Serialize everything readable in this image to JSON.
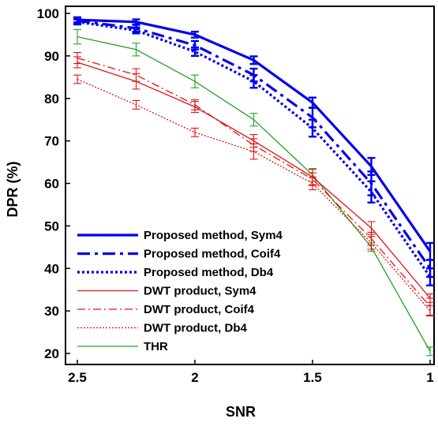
{
  "chart_data": {
    "type": "line",
    "title": "",
    "xlabel": "SNR",
    "ylabel": "DPR (%)",
    "x": [
      2.5,
      2.25,
      2,
      1.75,
      1.5,
      1.25,
      1
    ],
    "x_tick_labels": [
      "2.5",
      "2",
      "1.5",
      "1"
    ],
    "x_ticks": [
      2.5,
      2,
      1.5,
      1
    ],
    "y_tick_labels": [
      "20",
      "30",
      "40",
      "50",
      "60",
      "70",
      "80",
      "90",
      "100"
    ],
    "y_ticks": [
      20,
      30,
      40,
      50,
      60,
      70,
      80,
      90,
      100
    ],
    "xlim": [
      2.5,
      1
    ],
    "ylim": [
      20,
      100
    ],
    "x_reversed": true,
    "grid": false,
    "legend_position": "lower-left",
    "series": [
      {
        "name": "Proposed method, Sym4",
        "color": "#0000ee",
        "style": "solid",
        "weight": "thick",
        "values": [
          98.5,
          98,
          95,
          89,
          79,
          64,
          44
        ],
        "errors": [
          0.6,
          0.6,
          0.7,
          0.9,
          1.2,
          2,
          2
        ]
      },
      {
        "name": "Proposed method, Coif4",
        "color": "#0000ee",
        "style": "dashdot",
        "weight": "thick",
        "values": [
          98.3,
          96.5,
          92.5,
          85.5,
          75.5,
          60,
          40
        ],
        "errors": [
          0.6,
          0.8,
          1,
          1.5,
          2.3,
          2.8,
          2
        ]
      },
      {
        "name": "Proposed method, Db4",
        "color": "#0000ee",
        "style": "dotted",
        "weight": "thick",
        "values": [
          98,
          96,
          91,
          84,
          73,
          58,
          38
        ],
        "errors": [
          0.6,
          0.7,
          1,
          1.5,
          2,
          2.5,
          2
        ]
      },
      {
        "name": "DWT product, Sym4",
        "color": "#e61010",
        "style": "solid",
        "weight": "thin",
        "values": [
          88.5,
          84,
          78,
          70,
          61.5,
          49.5,
          33
        ],
        "errors": [
          1.3,
          1.8,
          1.3,
          1.5,
          1.8,
          1.5,
          1
        ]
      },
      {
        "name": "DWT product, Coif4",
        "color": "#e61010",
        "style": "dashdot",
        "weight": "thin",
        "values": [
          89.5,
          85.5,
          78.5,
          69,
          61,
          47,
          31
        ],
        "errors": [
          1.3,
          1.5,
          1.2,
          1.5,
          1.5,
          1.5,
          2
        ]
      },
      {
        "name": "DWT product, Db4",
        "color": "#e61010",
        "style": "dotted",
        "weight": "thin",
        "values": [
          84.5,
          78.5,
          72,
          67.5,
          60,
          46,
          30
        ],
        "errors": [
          1,
          1,
          1,
          1.8,
          1.5,
          1.5,
          1.2
        ]
      },
      {
        "name": "THR",
        "color": "#22a022",
        "style": "solid",
        "weight": "thin",
        "values": [
          94.5,
          91.5,
          84,
          75,
          62,
          45,
          20.5
        ],
        "errors": [
          1.7,
          1.5,
          1.5,
          1.5,
          1.5,
          1,
          1
        ]
      }
    ]
  }
}
